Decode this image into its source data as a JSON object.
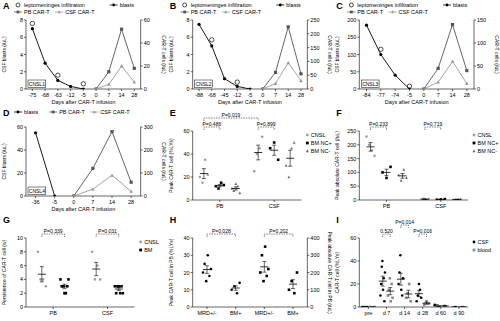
{
  "chart_data": [
    {
      "type": "line",
      "title": "A",
      "categories": [
        "-75",
        "-68",
        "-63",
        "-12",
        "-5",
        "0",
        "7",
        "14",
        "28"
      ],
      "x_label": "Days after CAR-T infusion",
      "y_label": "CSF blasts (/uL)",
      "y2_label": "CAR-T cells (/uL)",
      "ylim": [
        0,
        8
      ],
      "yticks": [
        0,
        2,
        4,
        6,
        8
      ],
      "y2lim": [
        0,
        60
      ],
      "y2ticks": [
        0,
        20,
        40,
        60
      ],
      "legend": "top",
      "annotations": [
        {
          "text": "CNSL1"
        }
      ],
      "series": [
        {
          "name": "leptomeninges infiltration",
          "color": "#000000",
          "marker": "open-circle",
          "line_style": "none",
          "values": [
            7.6,
            null,
            1.6,
            null,
            0.6,
            null,
            null,
            null,
            null
          ]
        },
        {
          "name": "blasts",
          "color": "#000000",
          "marker": "circle",
          "line_style": "solid",
          "values": [
            7,
            3,
            1,
            0.3,
            0,
            null,
            null,
            null,
            null
          ]
        },
        {
          "name": "PB CAR-T",
          "color": "#555555",
          "marker": "square",
          "line_style": "solid",
          "axis": "y2",
          "values": [
            null,
            null,
            null,
            null,
            null,
            0,
            15,
            52,
            18
          ]
        },
        {
          "name": "CSF CAR-T",
          "color": "#999999",
          "marker": "triangle",
          "line_style": "solid",
          "axis": "y2",
          "values": [
            null,
            null,
            null,
            null,
            null,
            0,
            4,
            20,
            6
          ]
        }
      ]
    },
    {
      "type": "line",
      "title": "B",
      "categories": [
        "-88",
        "-68",
        "-45",
        "-12",
        "-5",
        "0",
        "7",
        "14",
        "28"
      ],
      "x_label": "Days after CAR-T infusion",
      "y_label": "CSF blasts (/uL)",
      "y2_label": "CAR-T cells (/uL)",
      "ylim": [
        0,
        8
      ],
      "yticks": [
        0,
        2,
        4,
        6,
        8
      ],
      "y2lim": [
        0,
        250
      ],
      "y2ticks": [
        0,
        50,
        100,
        150,
        200,
        250
      ],
      "legend": "top",
      "annotations": [
        {
          "text": "CNSL2"
        }
      ],
      "series": [
        {
          "name": "leptomeninges infiltration",
          "color": "#000000",
          "marker": "open-circle",
          "line_style": "none",
          "values": [
            null,
            5.7,
            null,
            0.8,
            null,
            null,
            null,
            null,
            null
          ]
        },
        {
          "name": "blasts",
          "color": "#000000",
          "marker": "circle",
          "line_style": "solid",
          "values": [
            7.5,
            5,
            1.2,
            0.3,
            0,
            null,
            null,
            null,
            null
          ]
        },
        {
          "name": "PB CAR-T",
          "color": "#555555",
          "marker": "square",
          "line_style": "solid",
          "axis": "y2",
          "values": [
            null,
            null,
            null,
            null,
            null,
            0,
            60,
            225,
            55
          ]
        },
        {
          "name": "CSF CAR-T",
          "color": "#999999",
          "marker": "triangle",
          "line_style": "solid",
          "axis": "y2",
          "values": [
            null,
            null,
            null,
            null,
            null,
            0,
            20,
            95,
            30
          ]
        }
      ]
    },
    {
      "type": "line",
      "title": "C",
      "categories": [
        "-84",
        "-77",
        "-74",
        "-5",
        "0",
        "7",
        "14",
        "28"
      ],
      "x_label": "Days after CAR-T infusion",
      "y_label": "CSF blasts (/uL)",
      "y2_label": "CAR-T cells (/uL)",
      "ylim": [
        0,
        200
      ],
      "yticks": [
        0,
        50,
        100,
        150,
        200
      ],
      "y2lim": [
        0,
        150
      ],
      "y2ticks": [
        0,
        50,
        100,
        150
      ],
      "legend": "top",
      "annotations": [
        {
          "text": "CNSL3"
        }
      ],
      "series": [
        {
          "name": "leptomeninges infiltration",
          "color": "#000000",
          "marker": "open-circle",
          "line_style": "none",
          "values": [
            null,
            115,
            null,
            8,
            null,
            null,
            null,
            null
          ]
        },
        {
          "name": "blasts",
          "color": "#000000",
          "marker": "circle",
          "line_style": "solid",
          "values": [
            185,
            100,
            40,
            0,
            null,
            null,
            null,
            null
          ]
        },
        {
          "name": "PB CAR-T",
          "color": "#555555",
          "marker": "square",
          "line_style": "solid",
          "axis": "y2",
          "values": [
            null,
            null,
            null,
            null,
            0,
            45,
            140,
            40
          ]
        },
        {
          "name": "CSF CAR-T",
          "color": "#999999",
          "marker": "triangle",
          "line_style": "solid",
          "axis": "y2",
          "values": [
            null,
            null,
            null,
            null,
            0,
            15,
            60,
            12
          ]
        }
      ]
    },
    {
      "type": "line",
      "title": "D",
      "categories": [
        "-36",
        "-5",
        "0",
        "7",
        "14",
        "28"
      ],
      "x_label": "Days after CAR-T infusion",
      "y_label": "CSF blasts (/uL)",
      "y2_label": "CAR-T cells (/uL)",
      "ylim": [
        0,
        60
      ],
      "yticks": [
        0,
        20,
        40,
        60
      ],
      "y2lim": [
        0,
        300
      ],
      "y2ticks": [
        0,
        100,
        200,
        300
      ],
      "legend": "top",
      "annotations": [
        {
          "text": "CNSL4"
        }
      ],
      "series": [
        {
          "name": "blasts",
          "color": "#000000",
          "marker": "circle",
          "line_style": "solid",
          "values": [
            55,
            0,
            null,
            null,
            null,
            null
          ]
        },
        {
          "name": "PB CAR-T",
          "color": "#555555",
          "marker": "square",
          "line_style": "solid",
          "axis": "y2",
          "values": [
            null,
            null,
            0,
            120,
            280,
            60
          ]
        },
        {
          "name": "CSF CAR-T",
          "color": "#999999",
          "marker": "triangle",
          "line_style": "solid",
          "axis": "y2",
          "values": [
            null,
            null,
            0,
            30,
            90,
            20
          ]
        }
      ]
    },
    {
      "type": "strip",
      "title": "E",
      "categories": [
        "PB",
        "CSF"
      ],
      "y_label": "Peak CAR-T cell (%LYs)",
      "ylim": [
        0,
        60
      ],
      "yticks": [
        0,
        20,
        40,
        60
      ],
      "legend": "right",
      "series": [
        {
          "name": "CNSL",
          "color": "#9e9e9e",
          "marker": "circle",
          "values": [
            [
              20,
              15,
              35,
              22
            ],
            [
              25,
              40,
              45,
              55
            ]
          ],
          "mean": [
            23,
            41.3
          ],
          "error": [
            4.3,
            6.4
          ]
        },
        {
          "name": "BM NC+",
          "color": "#000000",
          "marker": "square",
          "values": [
            [
              12,
              10,
              15,
              13
            ],
            [
              45,
              50,
              35
            ]
          ],
          "mean": [
            12.5,
            43.3
          ],
          "error": [
            1,
            4.4
          ]
        },
        {
          "name": "BM NC-",
          "color": "#6d6d6d",
          "marker": "triangle",
          "values": [
            [
              10,
              8,
              14,
              12,
              6
            ],
            [
              30,
              20,
              45,
              50
            ]
          ],
          "mean": [
            10,
            36.3
          ],
          "error": [
            1.4,
            6.9
          ]
        }
      ],
      "annotations": [
        {
          "text": "P=0.486",
          "from": {
            "category": 0,
            "series": 0
          },
          "to": {
            "category": 0,
            "series": 1
          }
        },
        {
          "text": "P=0.019",
          "from": {
            "category": 0,
            "series": 0
          },
          "to": {
            "category": 1,
            "series": 0
          }
        },
        {
          "text": "P=0.899",
          "from": {
            "category": 1,
            "series": 0
          },
          "to": {
            "category": 1,
            "series": 1
          }
        }
      ]
    },
    {
      "type": "strip",
      "title": "F",
      "categories": [
        "PB",
        "CSF"
      ],
      "y_label": "Peak absolute CAR-T cell (/uL)",
      "ylim": [
        0,
        250
      ],
      "yticks": [
        0,
        50,
        100,
        150,
        200,
        250
      ],
      "legend": "right",
      "series": [
        {
          "name": "CNSL",
          "color": "#9e9e9e",
          "marker": "circle",
          "values": [
            [
              230,
              200,
              180,
              160
            ],
            [
              2,
              5,
              1,
              3
            ]
          ],
          "mean": [
            192.5,
            2.8
          ],
          "error": [
            15.5,
            0.9
          ]
        },
        {
          "name": "BM NC+",
          "color": "#000000",
          "marker": "square",
          "values": [
            [
              100,
              80,
              120
            ],
            [
              1,
              2,
              3
            ]
          ],
          "mean": [
            100,
            2
          ],
          "error": [
            11.5,
            0.6
          ]
        },
        {
          "name": "BM NC-",
          "color": "#6d6d6d",
          "marker": "triangle",
          "values": [
            [
              90,
              70,
              110,
              80
            ],
            [
              0.5,
              1,
              2,
              4
            ]
          ],
          "mean": [
            87.5,
            1.9
          ],
          "error": [
            8.5,
            0.8
          ]
        }
      ],
      "annotations": [
        {
          "text": "P=0.233",
          "from": {
            "category": 0,
            "series": 0
          },
          "to": {
            "category": 0,
            "series": 1
          }
        },
        {
          "text": "P=0.719",
          "from": {
            "category": 1,
            "series": 0
          },
          "to": {
            "category": 1,
            "series": 1
          }
        }
      ]
    },
    {
      "type": "strip",
      "title": "G",
      "categories": [
        "PB",
        "CSF"
      ],
      "y_label": "Persistence of CAR-T cell (w)",
      "ylim": [
        0,
        10
      ],
      "yticks": [
        0,
        2,
        4,
        6,
        8,
        10
      ],
      "legend": "right",
      "series": [
        {
          "name": "CNSL",
          "color": "#9e9e9e",
          "marker": "circle",
          "values": [
            [
              8,
              4,
              4,
              3
            ],
            [
              8,
              4,
              6,
              4
            ]
          ],
          "mean": [
            4.75,
            5.5
          ],
          "error": [
            1.1,
            0.96
          ]
        },
        {
          "name": "BM",
          "color": "#000000",
          "marker": "square",
          "values": [
            [
              4,
              3,
              3,
              2,
              2,
              3,
              4
            ],
            [
              3,
              2,
              3,
              3,
              2,
              3,
              2
            ]
          ],
          "mean": [
            3,
            2.6
          ],
          "error": [
            0.3,
            0.2
          ]
        }
      ],
      "annotations": [
        {
          "text": "P=0.339",
          "from": {
            "category": 0,
            "series": 0
          },
          "to": {
            "category": 0,
            "series": 1
          }
        },
        {
          "text": "P=0.031",
          "from": {
            "category": 1,
            "series": 0
          },
          "to": {
            "category": 1,
            "series": 1
          }
        }
      ]
    },
    {
      "type": "strip",
      "title": "H",
      "categories": [
        "MRD+/-",
        "BM+",
        "MRD+/-",
        "BM+"
      ],
      "y_label": "Peak CAR-T cell in PB (%LYs)",
      "y2_label": "Peak absolute CAR-T cell in PB (/uL)",
      "ylim": [
        0,
        40
      ],
      "yticks": [
        0,
        10,
        20,
        30,
        40
      ],
      "y2lim": [
        0,
        400
      ],
      "y2ticks": [
        0,
        100,
        200,
        300,
        400
      ],
      "series": [
        {
          "color": "#000000",
          "marker": "circle",
          "values": [
            [
              20,
              25,
              15,
              30,
              18,
              22
            ],
            [
              10,
              12,
              8,
              14
            ],
            null,
            null
          ],
          "mean": [
            21.7,
            11,
            null,
            null
          ],
          "error": [
            2.2,
            1.3,
            null,
            null
          ]
        },
        {
          "color": "#000000",
          "marker": "square",
          "axis": "y2",
          "values": [
            null,
            null,
            [
              200,
              300,
              150,
              350,
              180,
              220
            ],
            [
              100,
              150,
              80,
              200
            ]
          ],
          "mean": [
            null,
            null,
            233,
            132.5
          ],
          "error": [
            null,
            null,
            31,
            26
          ]
        }
      ],
      "annotations": [
        {
          "text": "P=0.028",
          "from": {
            "category": 0,
            "series": 0
          },
          "to": {
            "category": 1,
            "series": 0
          }
        },
        {
          "text": "P=0.202",
          "from": {
            "category": 2,
            "series": 1
          },
          "to": {
            "category": 3,
            "series": 1
          }
        }
      ]
    },
    {
      "type": "strip",
      "title": "I",
      "categories": [
        "pre",
        "d 7",
        "d 14",
        "d 28",
        "d 60",
        "d 90"
      ],
      "y_label": "CAR-T cell (%LYs)",
      "ylim": [
        0,
        60
      ],
      "yticks": [
        0,
        20,
        40,
        60
      ],
      "legend": "right",
      "series": [
        {
          "name": "CSF",
          "color": "#000000",
          "marker": "circle",
          "values": [
            [
              0,
              0,
              0
            ],
            [
              10,
              20,
              35,
              40,
              15,
              25,
              5,
              30
            ],
            [
              20,
              30,
              45,
              15,
              10,
              25
            ],
            [
              5,
              10,
              20,
              15,
              8
            ],
            [
              2,
              0
            ],
            [
              0
            ]
          ],
          "mean": [
            0,
            22.5,
            24.2,
            11.6,
            1,
            0
          ],
          "error": [
            0,
            4.3,
            5.2,
            2.6,
            1,
            0
          ]
        },
        {
          "name": "blood",
          "color": "#8a8a8a",
          "marker": "square",
          "values": [
            [
              0,
              0
            ],
            [
              10,
              15,
              25,
              5,
              20,
              8
            ],
            [
              8,
              12,
              20,
              5
            ],
            [
              2,
              5,
              3
            ],
            [
              1
            ],
            [
              0
            ]
          ],
          "mean": [
            0,
            13.8,
            11.3,
            3.3,
            1,
            0
          ],
          "error": [
            0,
            3.1,
            3.3,
            0.9,
            0,
            0
          ]
        }
      ],
      "annotations": [
        {
          "text": "0.520",
          "from": {
            "category": 1,
            "series": 0
          },
          "to": {
            "category": 1,
            "series": 1
          }
        },
        {
          "text": "P=0.014",
          "from": {
            "category": 2,
            "series": 0
          },
          "to": {
            "category": 2,
            "series": 1
          }
        },
        {
          "text": "P=0.016",
          "from": {
            "category": 3,
            "series": 0
          },
          "to": {
            "category": 3,
            "series": 1
          }
        }
      ]
    }
  ]
}
